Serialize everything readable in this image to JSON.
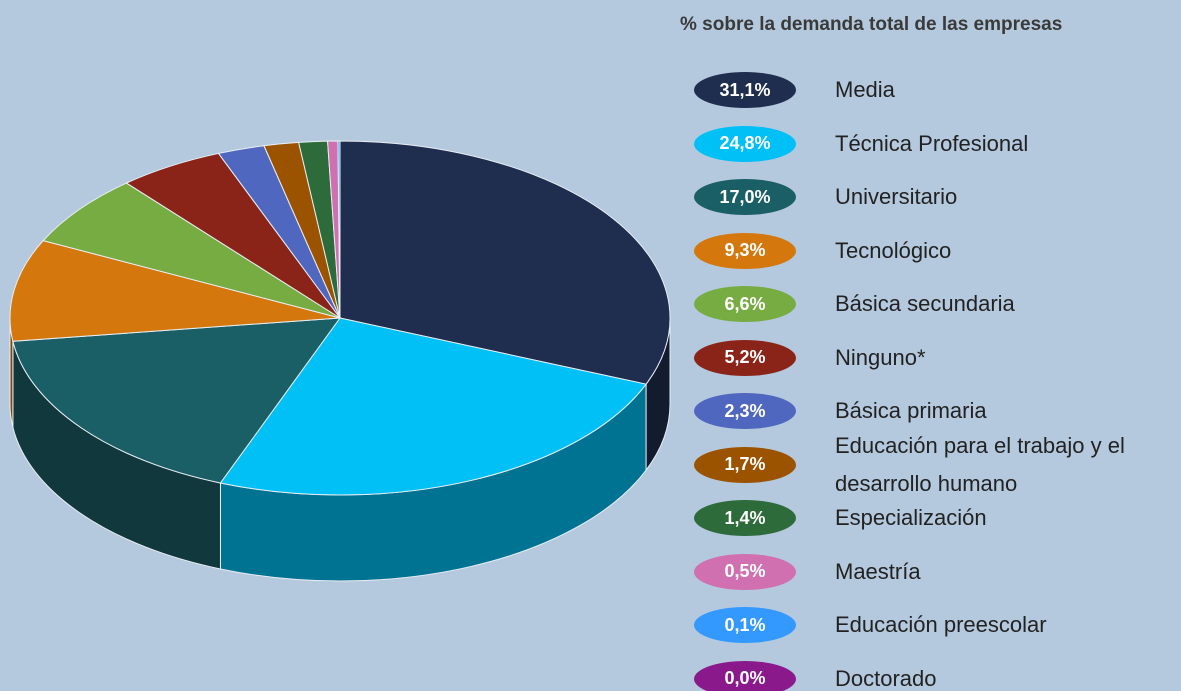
{
  "chart_data": {
    "type": "pie",
    "title": "% sobre la demanda total de las empresas",
    "categories": [
      "Media",
      "Técnica Profesional",
      "Universitario",
      "Tecnológico",
      "Básica secundaria",
      "Ninguno*",
      "Básica primaria",
      "Educación para el trabajo y el desarrollo humano",
      "Especialización",
      "Maestría",
      "Educación preescolar",
      "Doctorado"
    ],
    "values": [
      31.1,
      24.8,
      17.0,
      9.3,
      6.6,
      5.2,
      2.3,
      1.7,
      1.4,
      0.5,
      0.1,
      0.0
    ],
    "value_labels": [
      "31,1%",
      "24,8%",
      "17,0%",
      "9,3%",
      "6,6%",
      "5,2%",
      "2,3%",
      "1,7%",
      "1,4%",
      "0,5%",
      "0,1%",
      "0,0%"
    ],
    "colors": [
      "#1f2d4e",
      "#00c0f5",
      "#1a5e66",
      "#d4780e",
      "#77ac43",
      "#8b2418",
      "#5067c0",
      "#9b5300",
      "#2e6b3a",
      "#d070b0",
      "#3399ff",
      "#8a1a8c"
    ]
  }
}
